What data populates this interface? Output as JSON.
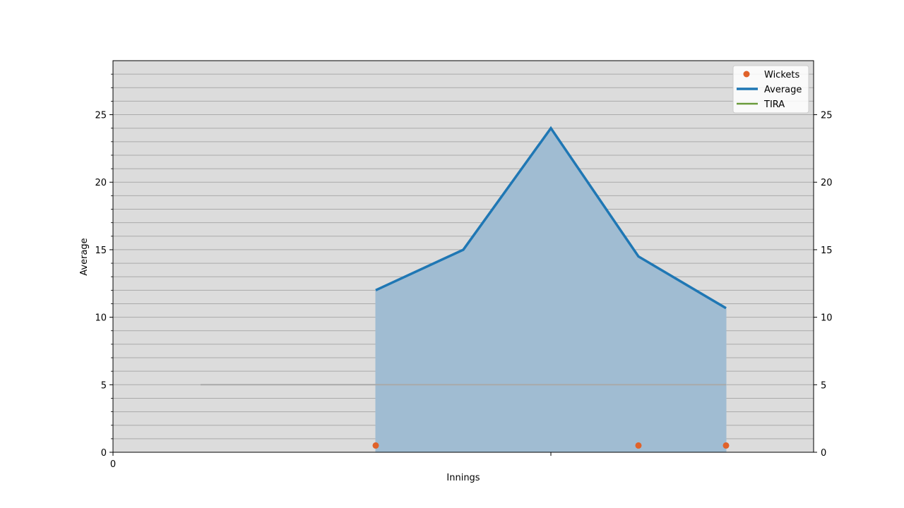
{
  "chart_data": {
    "type": "line",
    "title": "",
    "xlabel": "Innings",
    "ylabel": "Average",
    "xlim": [
      0,
      8
    ],
    "ylim": [
      0,
      29
    ],
    "x_ticks": [
      0,
      5
    ],
    "x_tick_labels": [
      "0",
      ""
    ],
    "y_ticks": [
      0,
      5,
      10,
      15,
      20,
      25
    ],
    "y_tick_labels": [
      "0",
      "5",
      "10",
      "15",
      "20",
      "25"
    ],
    "right_y_ticks": [
      0,
      5,
      10,
      15,
      20,
      25
    ],
    "right_y_tick_labels": [
      "0",
      "5",
      "10",
      "15",
      "20",
      "25"
    ],
    "y_minor_step": 1,
    "grid": true,
    "legend_position": "upper right",
    "legend": [
      "Wickets",
      "Average",
      "TIRA"
    ],
    "series": [
      {
        "name": "Average",
        "kind": "line",
        "filled": true,
        "x": [
          3,
          4,
          5,
          6,
          7
        ],
        "values": [
          12.0,
          15.0,
          24.0,
          14.5,
          10.67
        ]
      },
      {
        "name": "Wickets",
        "kind": "scatter",
        "x": [
          3,
          6,
          7
        ],
        "values": [
          0.5,
          0.5,
          0.5
        ]
      },
      {
        "name": "TIRA",
        "kind": "line",
        "x": [
          1,
          7
        ],
        "values": [
          5,
          5
        ]
      }
    ],
    "colors": {
      "plot_bg": "#dcdcdc",
      "grid": "#aaaaaa",
      "average": "#1f77b4",
      "average_fill": "#a0bcd2",
      "wickets": "#e0622a",
      "tira_legend": "#6a9a3a",
      "tira_line": "#a9a9a9"
    }
  }
}
